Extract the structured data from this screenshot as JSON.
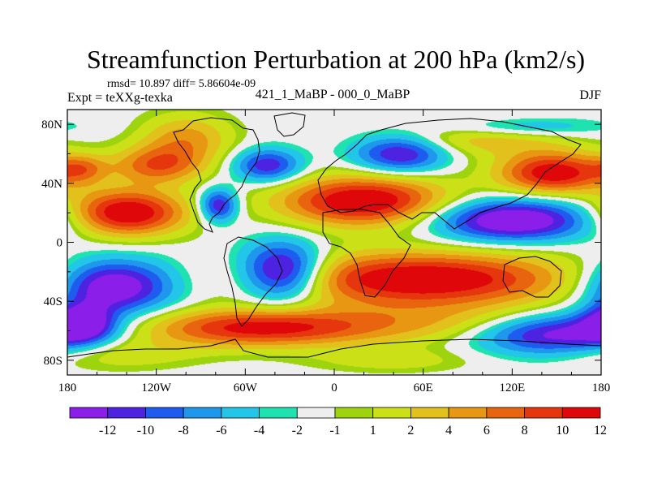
{
  "chart_data": {
    "type": "heatmap",
    "title": "Streamfunction Perturbation at 200 hPa (km2/s)",
    "stats_line": "rmsd= 10.897 diff= 5.86604e-09",
    "experiment": "Expt = teXXg-texka",
    "subtitle": "421_1_MaBP - 000_0_MaBP",
    "season": "DJF",
    "xlabel": "",
    "ylabel": "",
    "x_tick_labels": [
      "180",
      "120W",
      "60W",
      "0",
      "60E",
      "120E",
      "180"
    ],
    "x_ticks": [
      -180,
      -120,
      -60,
      0,
      60,
      120,
      180
    ],
    "y_tick_labels": [
      "80N",
      "40N",
      "0",
      "40S",
      "80S"
    ],
    "y_ticks": [
      80,
      40,
      0,
      -40,
      -80
    ],
    "xlim": [
      -180,
      180
    ],
    "ylim": [
      -90,
      90
    ],
    "colorbar": {
      "levels": [
        -12,
        -10,
        -8,
        -6,
        -4,
        -2,
        -1,
        1,
        2,
        4,
        6,
        8,
        10,
        12
      ],
      "tick_labels": [
        "-12",
        "-10",
        "-8",
        "-6",
        "-4",
        "-2",
        "-1",
        "1",
        "2",
        "4",
        "6",
        "8",
        "10",
        "12"
      ],
      "colors": [
        "#8b1ee8",
        "#4d22e0",
        "#1e5cf0",
        "#1f97ec",
        "#22c6e8",
        "#1ee3b0",
        "#eeeeee",
        "#9ed40e",
        "#cce018",
        "#e2c11c",
        "#e89712",
        "#e8640e",
        "#e6360d",
        "#e0070a"
      ]
    },
    "features": [
      {
        "lon": 148,
        "lat": 47,
        "sigma_lon": 26,
        "sigma_lat": 10,
        "value": 14
      },
      {
        "lon": 100,
        "lat": 72,
        "sigma_lon": 40,
        "sigma_lat": 9,
        "value": 6
      },
      {
        "lon": -100,
        "lat": 70,
        "sigma_lon": 22,
        "sigma_lat": 12,
        "value": 7
      },
      {
        "lon": -120,
        "lat": 52,
        "sigma_lon": 22,
        "sigma_lat": 9,
        "value": 9
      },
      {
        "lon": -170,
        "lat": 50,
        "sigma_lon": 12,
        "sigma_lat": 7,
        "value": 6
      },
      {
        "lon": -45,
        "lat": 52,
        "sigma_lon": 16,
        "sigma_lat": 8,
        "value": -10
      },
      {
        "lon": 45,
        "lat": 60,
        "sigma_lon": 22,
        "sigma_lat": 9,
        "value": -11
      },
      {
        "lon": 120,
        "lat": 78,
        "sigma_lon": 40,
        "sigma_lat": 5,
        "value": -6
      },
      {
        "lon": -140,
        "lat": 20,
        "sigma_lon": 28,
        "sigma_lat": 11,
        "value": 15
      },
      {
        "lon": 20,
        "lat": 28,
        "sigma_lon": 40,
        "sigma_lat": 12,
        "value": 15
      },
      {
        "lon": -78,
        "lat": 25,
        "sigma_lon": 9,
        "sigma_lat": 8,
        "value": -11
      },
      {
        "lon": 120,
        "lat": 15,
        "sigma_lon": 38,
        "sigma_lat": 10,
        "value": -14
      },
      {
        "lon": -150,
        "lat": -30,
        "sigma_lon": 28,
        "sigma_lat": 13,
        "value": -14
      },
      {
        "lon": -35,
        "lat": -20,
        "sigma_lon": 20,
        "sigma_lat": 14,
        "value": -15
      },
      {
        "lon": 60,
        "lat": -25,
        "sigma_lon": 70,
        "sigma_lat": 13,
        "value": 15
      },
      {
        "lon": -50,
        "lat": -58,
        "sigma_lon": 55,
        "sigma_lat": 9,
        "value": 13
      },
      {
        "lon": 80,
        "lat": -55,
        "sigma_lon": 60,
        "sigma_lat": 10,
        "value": 5
      },
      {
        "lon": 150,
        "lat": -62,
        "sigma_lon": 40,
        "sigma_lat": 10,
        "value": -13
      },
      {
        "lon": -170,
        "lat": -55,
        "sigma_lon": 15,
        "sigma_lat": 9,
        "value": -12
      },
      {
        "lon": -150,
        "lat": -75,
        "sigma_lon": 40,
        "sigma_lat": 8,
        "value": 4
      },
      {
        "lon": 40,
        "lat": -80,
        "sigma_lon": 40,
        "sigma_lat": 6,
        "value": 3
      }
    ]
  }
}
